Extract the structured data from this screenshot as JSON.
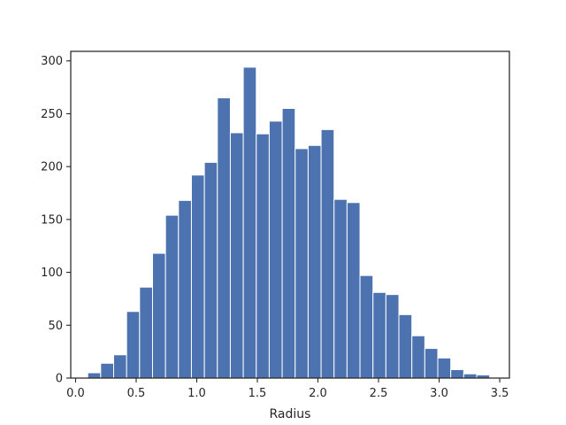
{
  "chart_data": {
    "type": "bar",
    "subtype": "histogram",
    "title": "",
    "xlabel": "Radius",
    "ylabel": "",
    "xlim": [
      -0.04,
      3.58
    ],
    "ylim": [
      0,
      309
    ],
    "grid": false,
    "legend": "none",
    "bar_color": "#4c72b0",
    "edge_color": "#ffffff",
    "bin_edges": [
      0.1,
      0.207,
      0.314,
      0.421,
      0.528,
      0.635,
      0.742,
      0.849,
      0.956,
      1.063,
      1.17,
      1.277,
      1.384,
      1.491,
      1.598,
      1.705,
      1.812,
      1.919,
      2.026,
      2.133,
      2.24,
      2.347,
      2.454,
      2.561,
      2.668,
      2.775,
      2.882,
      2.989,
      3.096,
      3.203,
      3.31,
      3.417
    ],
    "values": [
      5,
      14,
      22,
      63,
      86,
      118,
      154,
      168,
      192,
      204,
      265,
      232,
      294,
      231,
      243,
      255,
      217,
      220,
      235,
      169,
      166,
      97,
      81,
      79,
      60,
      40,
      28,
      19,
      8,
      4,
      3
    ],
    "x_ticks": [
      0.0,
      0.5,
      1.0,
      1.5,
      2.0,
      2.5,
      3.0,
      3.5
    ],
    "x_tick_labels": [
      "0.0",
      "0.5",
      "1.0",
      "1.5",
      "2.0",
      "2.5",
      "3.0",
      "3.5"
    ],
    "y_ticks": [
      0,
      50,
      100,
      150,
      200,
      250,
      300
    ],
    "y_tick_labels": [
      "0",
      "50",
      "100",
      "150",
      "200",
      "250",
      "300"
    ]
  }
}
